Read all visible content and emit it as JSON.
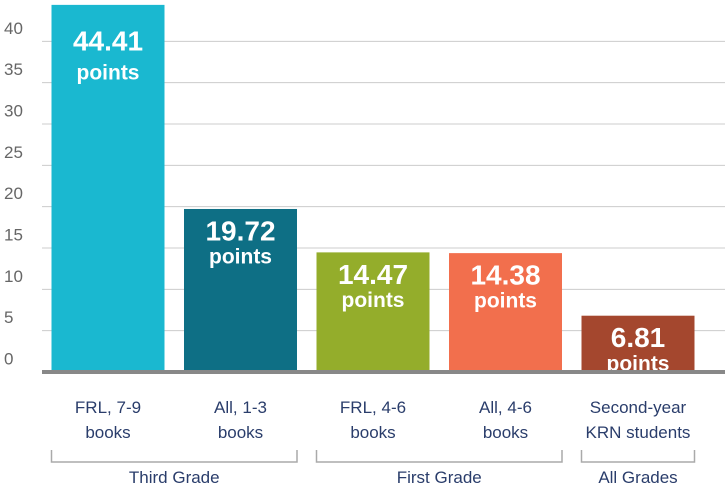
{
  "chart_data": {
    "type": "bar",
    "categories": [
      "FRL, 7-9\nbooks",
      "All, 1-3\nbooks",
      "FRL, 4-6\nbooks",
      "All, 4-6\nbooks",
      "Second-year\nKRN students"
    ],
    "values": [
      44.41,
      19.72,
      14.47,
      14.38,
      6.81
    ],
    "colors": [
      "#1ab8d0",
      "#0e6f85",
      "#94ad2b",
      "#f26f4d",
      "#a4472e"
    ],
    "value_unit": "points",
    "ylim": [
      0,
      45
    ],
    "yticks": [
      0,
      5,
      10,
      15,
      20,
      25,
      30,
      35,
      40
    ],
    "grid": true,
    "groups": [
      {
        "label": "Third Grade",
        "size": 2
      },
      {
        "label": "First Grade",
        "size": 2
      },
      {
        "label": "All Grades",
        "size": 1
      }
    ]
  }
}
